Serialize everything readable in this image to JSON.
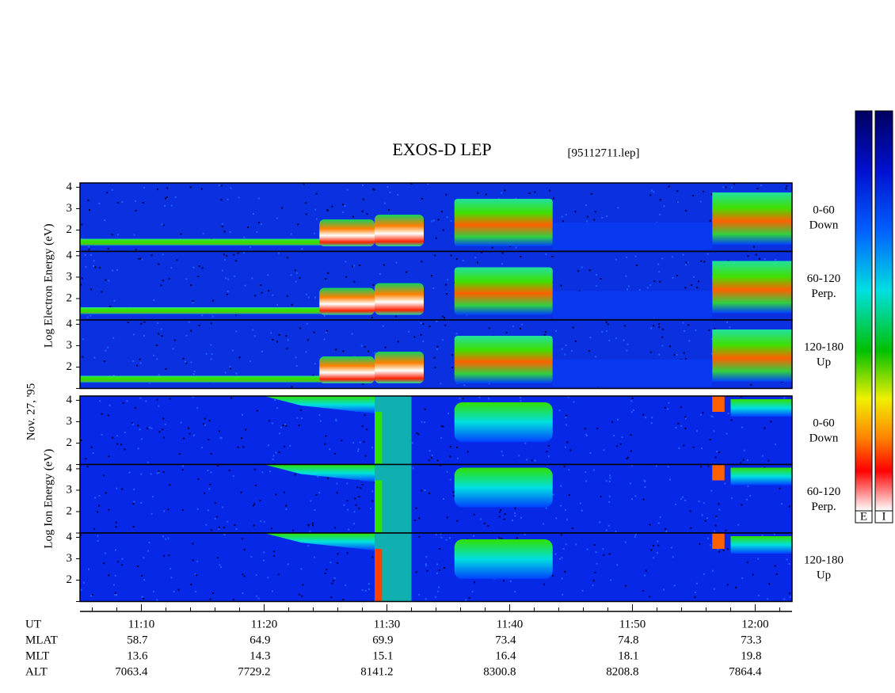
{
  "chart_data": {
    "type": "spectrogram",
    "title": "EXOS-D LEP",
    "subtitle": "[95112711.lep]",
    "date_label": "Nov. 27, '95",
    "groups": [
      {
        "ylabel": "Log Electron Energy (eV)",
        "colorbar_label": "E",
        "panels": [
          {
            "angle": "0-60",
            "direction": "Down"
          },
          {
            "angle": "60-120",
            "direction": "Perp."
          },
          {
            "angle": "120-180",
            "direction": "Up"
          }
        ]
      },
      {
        "ylabel": "Log Ion Energy (eV)",
        "colorbar_label": "I",
        "panels": [
          {
            "angle": "0-60",
            "direction": "Down"
          },
          {
            "angle": "60-120",
            "direction": "Perp."
          },
          {
            "angle": "120-180",
            "direction": "Up"
          }
        ]
      }
    ],
    "ylim": [
      1,
      4.2
    ],
    "yticks": [
      2,
      3,
      4
    ],
    "xlim": [
      665,
      723
    ],
    "xticks": [
      {
        "value": 670,
        "label": "11:10"
      },
      {
        "value": 680,
        "label": "11:20"
      },
      {
        "value": 690,
        "label": "11:30"
      },
      {
        "value": 700,
        "label": "11:40"
      },
      {
        "value": 710,
        "label": "11:50"
      },
      {
        "value": 720,
        "label": "12:00"
      }
    ],
    "xlabel": "UT",
    "rows": [
      {
        "name": "MLAT",
        "values": [
          58.7,
          64.9,
          69.9,
          73.4,
          74.8,
          73.3
        ]
      },
      {
        "name": "MLT",
        "values": [
          13.6,
          14.3,
          15.1,
          16.4,
          18.1,
          19.8
        ]
      },
      {
        "name": "ALT",
        "values": [
          7063.4,
          7729.2,
          8141.2,
          8300.8,
          8208.8,
          7864.4
        ]
      }
    ]
  }
}
